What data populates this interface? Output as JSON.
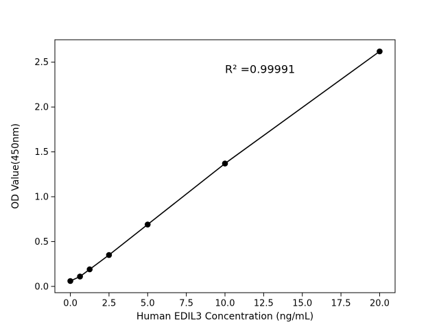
{
  "figure": {
    "background": "#ffffff"
  },
  "chart_data": {
    "type": "scatter",
    "title": "",
    "xlabel": "Human EDIL3 Concentration (ng/mL)",
    "ylabel": "OD Value(450nm)",
    "x": [
      0,
      0.625,
      1.25,
      2.5,
      5,
      10,
      20
    ],
    "y": [
      0.06,
      0.11,
      0.19,
      0.35,
      0.69,
      1.37,
      2.62
    ],
    "xlim": [
      -1,
      21
    ],
    "ylim": [
      -0.07,
      2.75
    ],
    "xticks": [
      0.0,
      2.5,
      5.0,
      7.5,
      10.0,
      12.5,
      15.0,
      17.5,
      20.0
    ],
    "xtick_labels": [
      "0.0",
      "2.5",
      "5.0",
      "7.5",
      "10.0",
      "12.5",
      "15.0",
      "17.5",
      "20.0"
    ],
    "yticks": [
      0.0,
      0.5,
      1.0,
      1.5,
      2.0,
      2.5
    ],
    "ytick_labels": [
      "0.0",
      "0.5",
      "1.0",
      "1.5",
      "2.0",
      "2.5"
    ],
    "grid": false,
    "legend": "none",
    "line_color": "#000000",
    "marker_color": "#000000",
    "marker_style": "filled-circle",
    "annotation": {
      "text": "R² =0.99991",
      "x": 10.0,
      "y": 2.38
    }
  }
}
